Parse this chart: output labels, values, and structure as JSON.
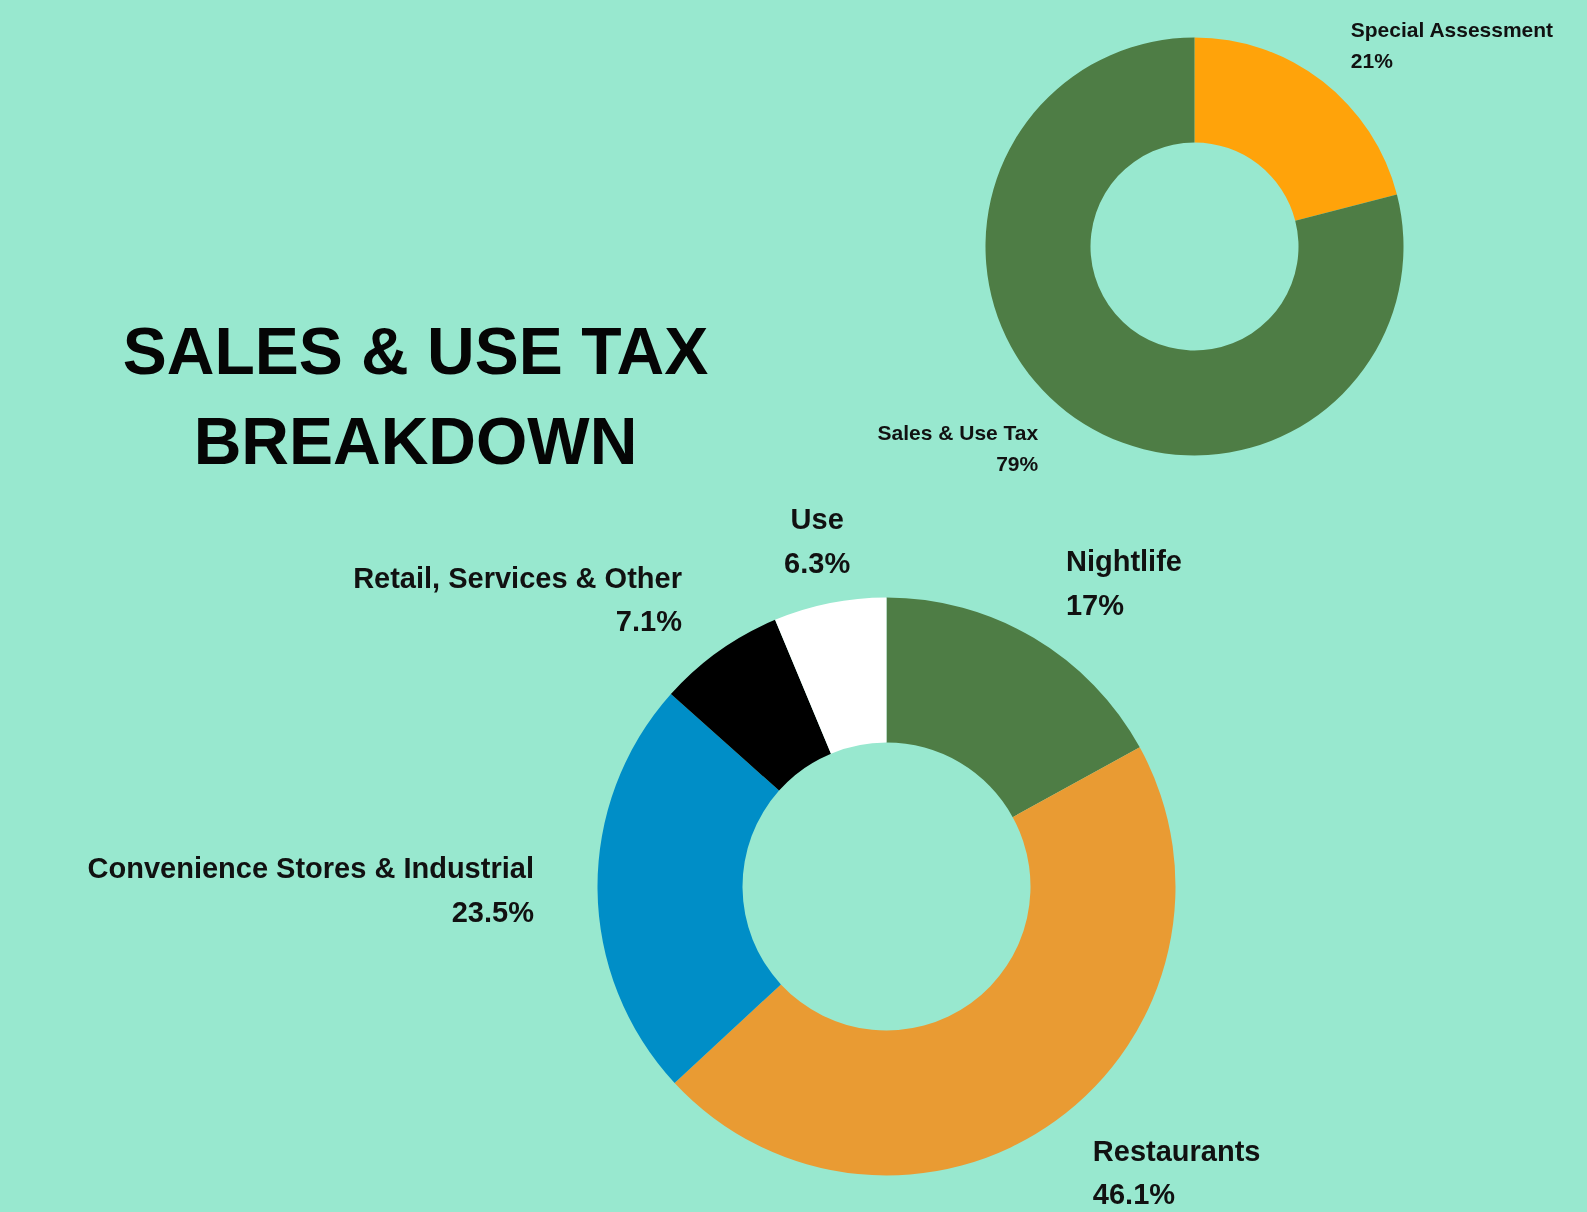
{
  "chart_data": [
    {
      "type": "donut",
      "title": "SALES & USE TAX BREAKDOWN",
      "categories": [
        "Special Assessment",
        "Sales & Use Tax"
      ],
      "values": [
        21,
        79
      ],
      "value_labels": [
        "21%",
        "79%"
      ],
      "colors": [
        "#ffa30a",
        "#4e7d45"
      ],
      "legend": false
    },
    {
      "type": "donut",
      "categories": [
        "Nightlife",
        "Restaurants",
        "Convenience Stores & Industrial",
        "Retail, Services & Other",
        "Use"
      ],
      "values": [
        17,
        46.1,
        23.5,
        7.1,
        6.3
      ],
      "value_labels": [
        "17%",
        "46.1%",
        "23.5%",
        "7.1%",
        "6.3%"
      ],
      "colors": [
        "#4e7d45",
        "#e99b33",
        "#008ec7",
        "#000000",
        "#ffffff"
      ],
      "legend": false
    }
  ]
}
